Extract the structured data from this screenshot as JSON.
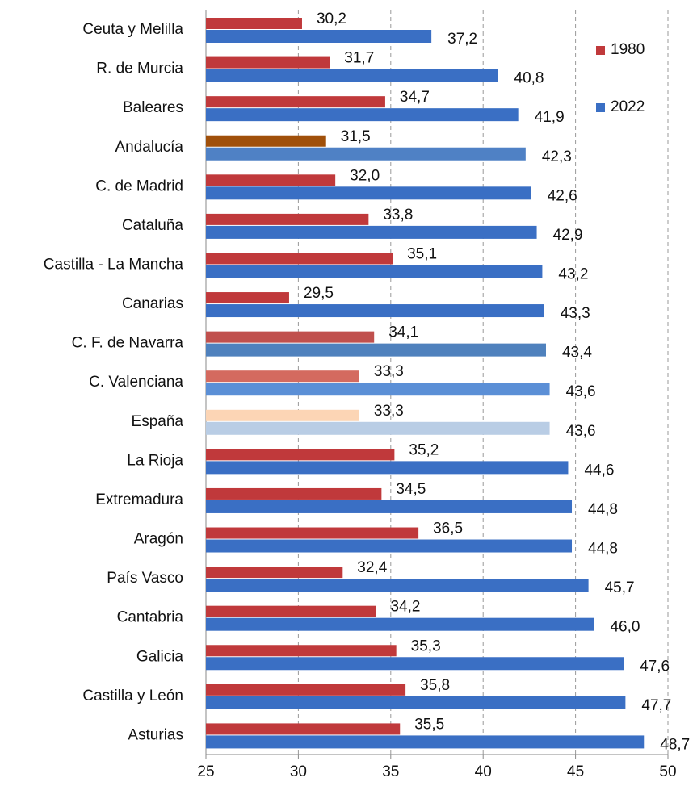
{
  "chart_data": {
    "type": "hbar",
    "categories": [
      "Ceuta y Melilla",
      "R. de Murcia",
      "Baleares",
      "Andalucía",
      "C. de Madrid",
      "Cataluña",
      "Castilla - La Mancha",
      "Canarias",
      "C. F. de Navarra",
      "C. Valenciana",
      "España",
      "La Rioja",
      "Extremadura",
      "Aragón",
      "País Vasco",
      "Cantabria",
      "Galicia",
      "Castilla y León",
      "Asturias"
    ],
    "series": [
      {
        "name": "1980",
        "color": "#c0393b",
        "values": [
          30.2,
          31.7,
          34.7,
          31.5,
          32.0,
          33.8,
          35.1,
          29.5,
          34.1,
          33.3,
          33.3,
          35.2,
          34.5,
          36.5,
          32.4,
          34.2,
          35.3,
          35.8,
          35.5
        ],
        "value_labels": [
          "30,2",
          "31,7",
          "34,7",
          "31,5",
          "32,0",
          "33,8",
          "35,1",
          "29,5",
          "34,1",
          "33,3",
          "33,3",
          "35,2",
          "34,5",
          "36,5",
          "32,4",
          "34,2",
          "35,3",
          "35,8",
          "35,5"
        ],
        "colors": [
          "#c0393b",
          "#c0393b",
          "#c0393b",
          "#a0500a",
          "#c0393b",
          "#c0393b",
          "#c0393b",
          "#c0393b",
          "#c0504d",
          "#d46a5f",
          "#fcd5b5",
          "#c0393b",
          "#c0393b",
          "#c0393b",
          "#c0393b",
          "#c0393b",
          "#c0393b",
          "#c0393b",
          "#c0393b"
        ]
      },
      {
        "name": "2022",
        "color": "#3a6fc4",
        "values": [
          37.2,
          40.8,
          41.9,
          42.3,
          42.6,
          42.9,
          43.2,
          43.3,
          43.4,
          43.6,
          43.6,
          44.6,
          44.8,
          44.8,
          45.7,
          46.0,
          47.6,
          47.7,
          48.7
        ],
        "value_labels": [
          "37,2",
          "40,8",
          "41,9",
          "42,3",
          "42,6",
          "42,9",
          "43,2",
          "43,3",
          "43,4",
          "43,6",
          "43,6",
          "44,6",
          "44,8",
          "44,8",
          "45,7",
          "46,0",
          "47,6",
          "47,7",
          "48,7"
        ],
        "colors": [
          "#3a6fc4",
          "#3a6fc4",
          "#3a6fc4",
          "#4f81c5",
          "#3a6fc4",
          "#3a6fc4",
          "#3a6fc4",
          "#3a6fc4",
          "#4f81bd",
          "#5b8fd6",
          "#b9cde5",
          "#3a6fc4",
          "#3a6fc4",
          "#3a6fc4",
          "#3a6fc4",
          "#3a6fc4",
          "#3a6fc4",
          "#3a6fc4",
          "#3a6fc4"
        ]
      }
    ],
    "xlim": [
      25,
      50
    ],
    "xticks": [
      25,
      30,
      35,
      40,
      45,
      50
    ],
    "grid": true,
    "legend": "top-right"
  }
}
